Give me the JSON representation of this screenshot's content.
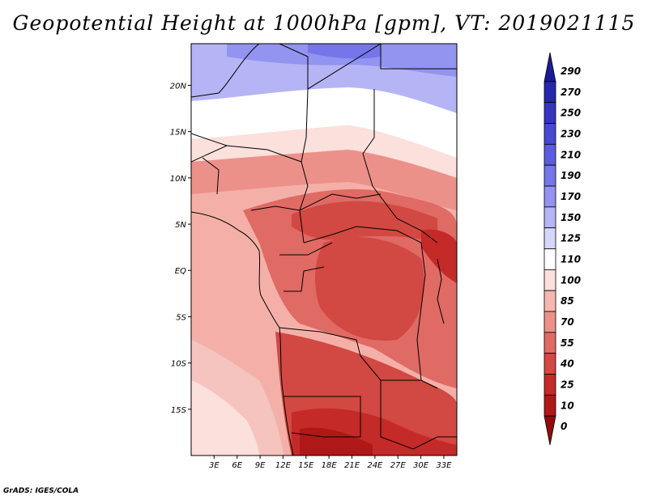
{
  "title": "Geopotential Height at 1000hPa [gpm], VT: 2019021115",
  "footer": "GrADS: IGES/COLA",
  "map": {
    "lat_labels": [
      "20N",
      "15N",
      "10N",
      "5N",
      "EQ",
      "5S",
      "10S",
      "15S"
    ],
    "lat_values": [
      20,
      15,
      10,
      5,
      0,
      -5,
      -10,
      -15
    ],
    "lon_labels": [
      "3E",
      "6E",
      "9E",
      "12E",
      "15E",
      "18E",
      "21E",
      "24E",
      "27E",
      "30E",
      "33E"
    ],
    "lon_values": [
      3,
      6,
      9,
      12,
      15,
      18,
      21,
      24,
      27,
      30,
      33
    ]
  },
  "colorbar": {
    "levels": [
      "290",
      "270",
      "250",
      "230",
      "210",
      "190",
      "170",
      "150",
      "125",
      "110",
      "100",
      "85",
      "70",
      "55",
      "40",
      "25",
      "10",
      "0"
    ],
    "colors": [
      "#1a1a9a",
      "#2727ad",
      "#3535c2",
      "#4848d2",
      "#5c5ce0",
      "#7676ea",
      "#9393f0",
      "#b5b5f5",
      "#d6d6fa",
      "#ffffff",
      "#fbe0dc",
      "#f5b7b0",
      "#ec918a",
      "#e06a64",
      "#d24842",
      "#c42a28",
      "#b01818",
      "#960a0a"
    ]
  }
}
